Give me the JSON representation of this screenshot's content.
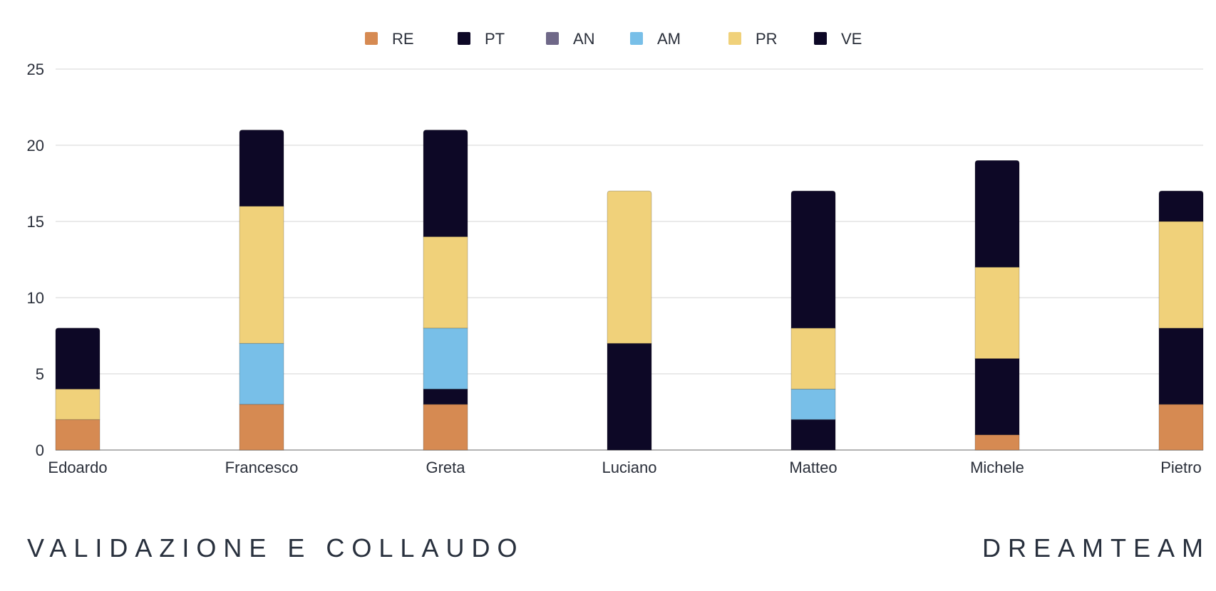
{
  "chart_data": {
    "type": "bar",
    "stacked": true,
    "categories": [
      "Edoardo",
      "Francesco",
      "Greta",
      "Luciano",
      "Matteo",
      "Michele",
      "Pietro"
    ],
    "series": [
      {
        "name": "RE",
        "color": "#d68a52",
        "values": [
          2,
          3,
          3,
          0,
          0,
          1,
          3
        ]
      },
      {
        "name": "PT",
        "color": "#0d0826",
        "values": [
          0,
          0,
          1,
          7,
          2,
          5,
          5
        ]
      },
      {
        "name": "AN",
        "color": "#6f6888",
        "values": [
          0,
          0,
          0,
          0,
          0,
          0,
          0
        ]
      },
      {
        "name": "AM",
        "color": "#78bfe8",
        "values": [
          0,
          4,
          4,
          0,
          2,
          0,
          0
        ]
      },
      {
        "name": "PR",
        "color": "#f0d17a",
        "values": [
          2,
          9,
          6,
          10,
          4,
          6,
          7
        ]
      },
      {
        "name": "VE",
        "color": "#0d0826",
        "values": [
          4,
          5,
          7,
          0,
          9,
          7,
          2
        ]
      }
    ],
    "ylim": [
      0,
      25
    ],
    "yticks": [
      0,
      5,
      10,
      15,
      20,
      25
    ],
    "grid": true,
    "legend_position": "top-center"
  },
  "footer": {
    "left": "VALIDAZIONE E COLLAUDO",
    "right": "DREAMTEAM"
  }
}
